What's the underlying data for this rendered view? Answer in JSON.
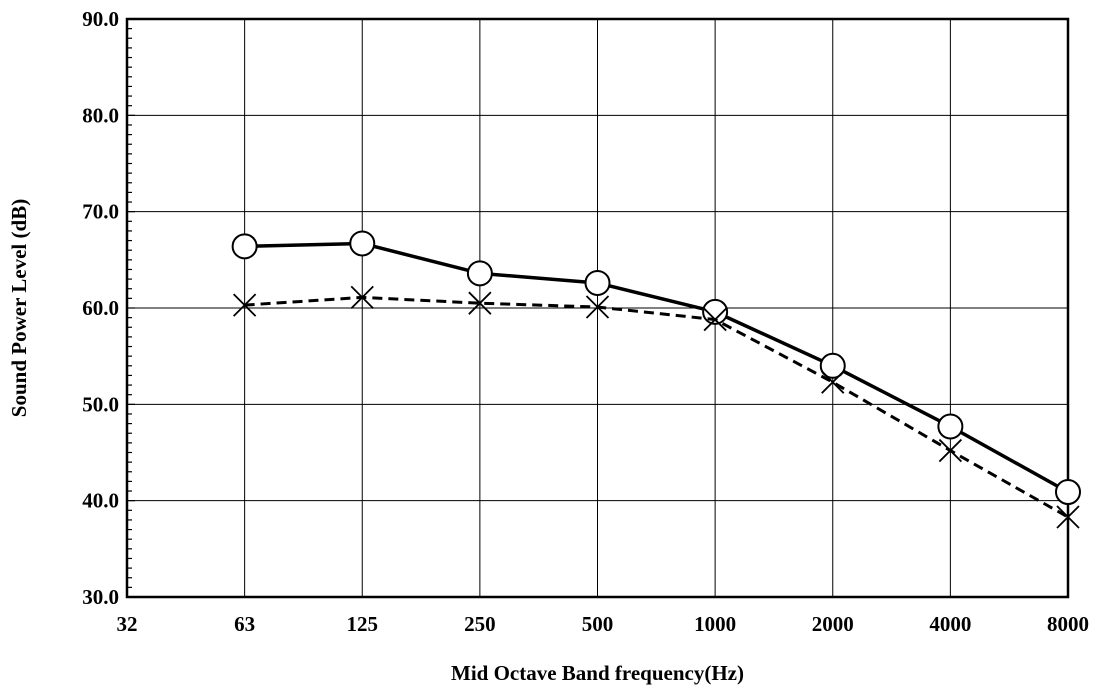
{
  "chart_data": {
    "type": "line",
    "title": "",
    "xlabel": "Mid Octave Band frequency(Hz)",
    "ylabel": "Sound Power Level (dB)",
    "categories": [
      "32",
      "63",
      "125",
      "250",
      "500",
      "1000",
      "2000",
      "4000",
      "8000"
    ],
    "x_scale": "log2 (octave bands)",
    "ylim": [
      30,
      90
    ],
    "y_ticks": [
      "30.0",
      "40.0",
      "50.0",
      "60.0",
      "70.0",
      "80.0",
      "90.0"
    ],
    "y_minor_step": 1,
    "grid": true,
    "legend": "none",
    "series": [
      {
        "style": "solid",
        "marker": "open-circle",
        "color": "#000000",
        "x": [
          "63",
          "125",
          "250",
          "500",
          "1000",
          "2000",
          "4000",
          "8000"
        ],
        "values": [
          66.4,
          66.7,
          63.6,
          62.6,
          59.6,
          54.0,
          47.7,
          40.9
        ]
      },
      {
        "style": "dashed",
        "marker": "x-cross",
        "color": "#000000",
        "x": [
          "63",
          "125",
          "250",
          "500",
          "1000",
          "2000",
          "4000",
          "8000"
        ],
        "values": [
          60.3,
          61.1,
          60.5,
          60.1,
          58.8,
          52.3,
          45.2,
          38.3
        ]
      }
    ]
  }
}
